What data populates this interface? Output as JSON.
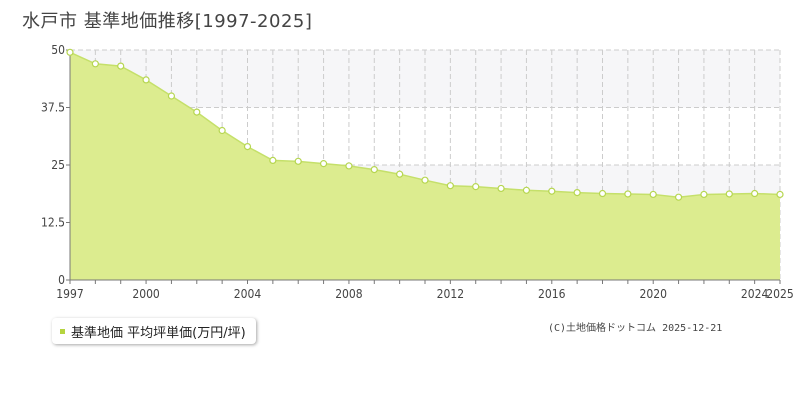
{
  "title": "水戸市 基準地価推移[1997-2025]",
  "legend": {
    "label": "基準地価 平均坪単価(万円/坪)"
  },
  "credit": "(C)土地価格ドットコム 2025-12-21",
  "colors": {
    "fill": "#dcec8f",
    "line": "#c5e06a",
    "marker_fill": "#ffffff",
    "marker_stroke": "#b6d650",
    "band": "#f6f6f8",
    "grid": "#cccccc",
    "axis": "#777777",
    "legend_swatch": "#b5d43f"
  },
  "chart_data": {
    "type": "area",
    "x": [
      1997,
      1998,
      1999,
      2000,
      2001,
      2002,
      2003,
      2004,
      2005,
      2006,
      2007,
      2008,
      2009,
      2010,
      2011,
      2012,
      2013,
      2014,
      2015,
      2016,
      2017,
      2018,
      2019,
      2020,
      2021,
      2022,
      2023,
      2024,
      2025
    ],
    "series": [
      {
        "name": "基準地価 平均坪単価(万円/坪)",
        "values": [
          49.5,
          47.0,
          46.5,
          43.5,
          40.0,
          36.5,
          32.5,
          29.0,
          26.0,
          25.8,
          25.3,
          24.8,
          24.0,
          23.0,
          21.7,
          20.5,
          20.3,
          19.9,
          19.5,
          19.3,
          19.0,
          18.8,
          18.7,
          18.6,
          18.0,
          18.6,
          18.7,
          18.8,
          18.6
        ]
      }
    ],
    "x_tick_labels": [
      "1997",
      "2000",
      "2004",
      "2008",
      "2012",
      "2016",
      "2020",
      "2024",
      "2025"
    ],
    "y_tick_labels": [
      "0",
      "12.5",
      "25",
      "37.5",
      "50"
    ],
    "xlim": [
      1997,
      2025
    ],
    "ylim": [
      0,
      50
    ],
    "grid": true,
    "legend_position": "bottom-left"
  }
}
